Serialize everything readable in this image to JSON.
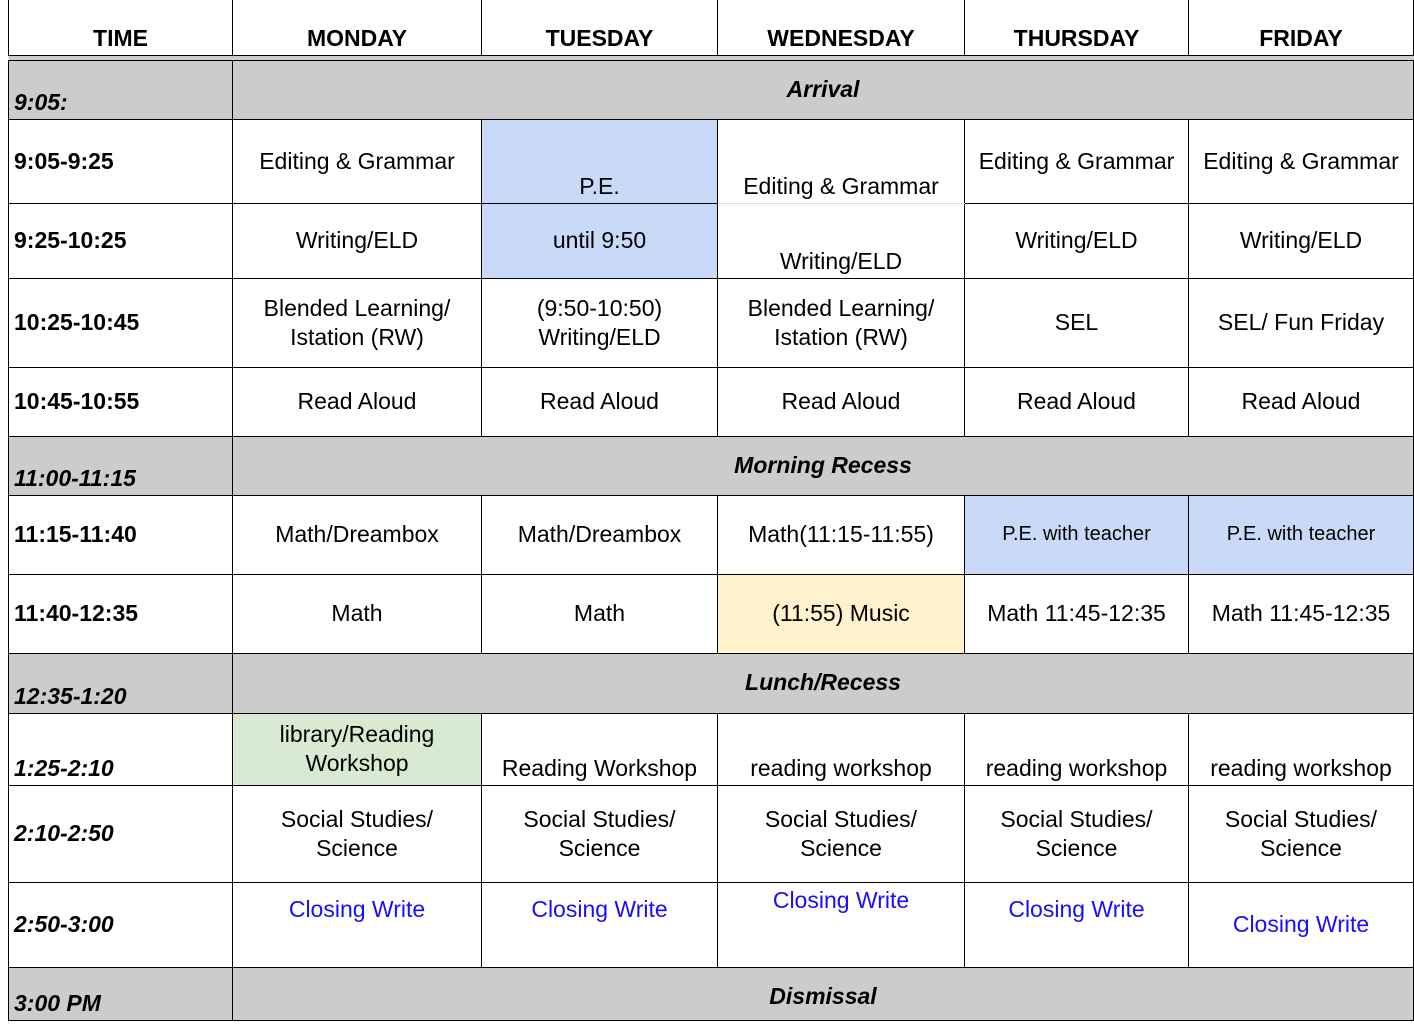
{
  "headers": [
    "TIME",
    "MONDAY",
    "TUESDAY",
    "WEDNESDAY",
    "THURSDAY",
    "FRIDAY"
  ],
  "colors": {
    "band": "#cccccc",
    "blue": "#c9daf8",
    "yellow": "#fff2cc",
    "green": "#d9ead3",
    "link": "#1a0dff"
  },
  "rows": [
    {
      "type": "band",
      "time": "9:05:",
      "label": "Arrival"
    },
    {
      "time": "9:05-9:25",
      "cells": [
        {
          "t": "Editing & Grammar"
        },
        {
          "t": "P.E.",
          "bg": "blue",
          "v": "bottom"
        },
        {
          "t": "Editing & Grammar",
          "v": "bottom"
        },
        {
          "t": "Editing & Grammar"
        },
        {
          "t": "Editing & Grammar"
        }
      ]
    },
    {
      "time": "9:25-10:25",
      "cells": [
        {
          "t": "Writing/ELD"
        },
        {
          "t": "until 9:50",
          "bg": "blue"
        },
        {
          "t": "Writing/ELD",
          "v": "bottom"
        },
        {
          "t": "Writing/ELD"
        },
        {
          "t": "Writing/ELD"
        }
      ]
    },
    {
      "time": "10:25-10:45",
      "cells": [
        {
          "t": "Blended Learning/ Istation (RW)"
        },
        {
          "t": "(9:50-10:50) Writing/ELD"
        },
        {
          "t": "Blended Learning/ Istation (RW)"
        },
        {
          "t": "SEL"
        },
        {
          "t": "SEL/ Fun Friday"
        }
      ]
    },
    {
      "time": "10:45-10:55",
      "cells": [
        {
          "t": "Read Aloud"
        },
        {
          "t": "Read Aloud"
        },
        {
          "t": "Read Aloud"
        },
        {
          "t": "Read Aloud"
        },
        {
          "t": "Read Aloud"
        }
      ]
    },
    {
      "type": "band",
      "time": "11:00-11:15",
      "label": "Morning Recess"
    },
    {
      "time": "11:15-11:40",
      "cells": [
        {
          "t": "Math/Dreambox"
        },
        {
          "t": "Math/Dreambox"
        },
        {
          "t": "Math(11:15-11:55)"
        },
        {
          "t": "P.E. with teacher",
          "bg": "blue",
          "small": true
        },
        {
          "t": "P.E. with teacher",
          "bg": "blue",
          "small": true
        }
      ]
    },
    {
      "time": "11:40-12:35",
      "cells": [
        {
          "t": "Math"
        },
        {
          "t": "Math"
        },
        {
          "t": "(11:55) Music",
          "bg": "yellow"
        },
        {
          "t": "Math 11:45-12:35"
        },
        {
          "t": "Math 11:45-12:35"
        }
      ]
    },
    {
      "type": "band",
      "time": "12:35-1:20",
      "label": "Lunch/Recess"
    },
    {
      "time": "1:25-2:10",
      "italic": true,
      "tv": "bottom",
      "cells": [
        {
          "t": "library/Reading Workshop",
          "bg": "green"
        },
        {
          "t": "Reading Workshop",
          "v": "bottom"
        },
        {
          "t": "reading workshop",
          "v": "bottom"
        },
        {
          "t": "reading workshop",
          "v": "bottom"
        },
        {
          "t": "reading workshop",
          "v": "bottom"
        }
      ]
    },
    {
      "time": "2:10-2:50",
      "italic": true,
      "cells": [
        {
          "t": "Social Studies/ Science"
        },
        {
          "t": "Social Studies/ Science"
        },
        {
          "t": "Social Studies/ Science"
        },
        {
          "t": "Social Studies/ Science"
        },
        {
          "t": "Social Studies/ Science"
        }
      ]
    },
    {
      "time": "2:50-3:00",
      "italic": true,
      "cells": [
        {
          "t": "Closing Write",
          "link": true,
          "v": "top"
        },
        {
          "t": "Closing Write",
          "link": true,
          "v": "top"
        },
        {
          "t": "Closing Write",
          "link": true,
          "v": "top0"
        },
        {
          "t": "Closing Write",
          "link": true,
          "v": "top"
        },
        {
          "t": "Closing Write",
          "link": true
        }
      ]
    },
    {
      "type": "band",
      "time": "3:00 PM",
      "label": "Dismissal"
    }
  ]
}
